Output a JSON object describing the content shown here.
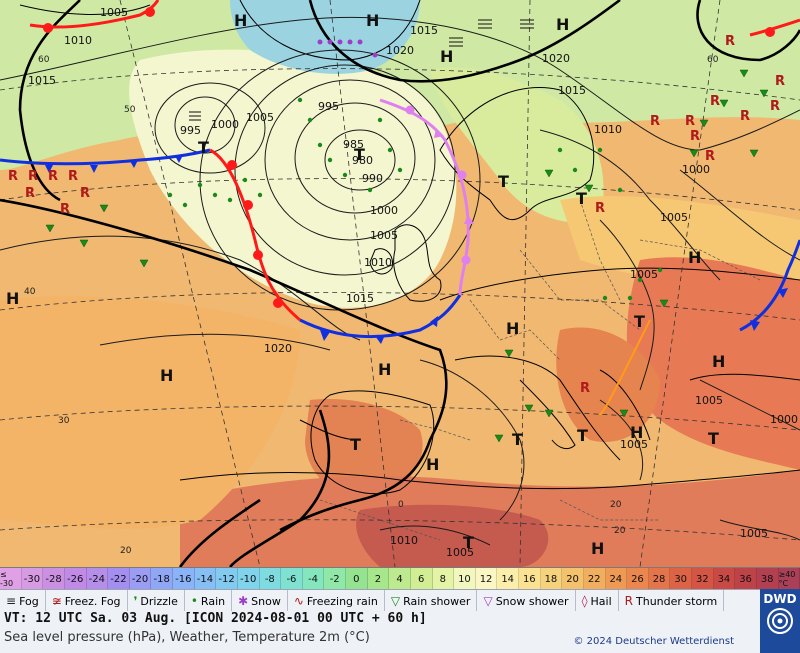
{
  "map": {
    "pressure_labels": [
      {
        "text": "1005"
      },
      {
        "text": "1010"
      },
      {
        "text": "1015"
      },
      {
        "text": "1020"
      },
      {
        "text": "995"
      },
      {
        "text": "1000"
      },
      {
        "text": "1005"
      },
      {
        "text": "995"
      },
      {
        "text": "985"
      },
      {
        "text": "980"
      },
      {
        "text": "990"
      },
      {
        "text": "1000"
      },
      {
        "text": "1005"
      },
      {
        "text": "1010"
      },
      {
        "text": "1015"
      },
      {
        "text": "1020"
      },
      {
        "text": "1015"
      },
      {
        "text": "1020"
      },
      {
        "text": "1015"
      },
      {
        "text": "1010"
      },
      {
        "text": "1005"
      },
      {
        "text": "1000"
      },
      {
        "text": "1005"
      },
      {
        "text": "1005"
      },
      {
        "text": "1005"
      },
      {
        "text": "1000"
      },
      {
        "text": "1010"
      },
      {
        "text": "1005"
      },
      {
        "text": "1005"
      }
    ],
    "high_low": [
      "H",
      "H",
      "H",
      "H",
      "H",
      "H",
      "H",
      "H",
      "H",
      "H",
      "H",
      "H",
      "H",
      "T",
      "T",
      "T",
      "T",
      "T",
      "T",
      "T",
      "T",
      "T",
      "T"
    ],
    "lat_labels": [
      "60",
      "50",
      "40",
      "30",
      "20",
      "60",
      "20",
      "0",
      "20"
    ]
  },
  "temperature_scale": {
    "labels": [
      "≤ -30",
      "-30",
      "-28",
      "-26",
      "-24",
      "-22",
      "-20",
      "-18",
      "-16",
      "-14",
      "-12",
      "-10",
      "-8",
      "-6",
      "-4",
      "-2",
      "0",
      "2",
      "4",
      "6",
      "8",
      "10",
      "12",
      "14",
      "16",
      "18",
      "20",
      "22",
      "24",
      "26",
      "28",
      "30",
      "32",
      "34",
      "36",
      "38",
      "≥40 °C"
    ],
    "colors": [
      "#e0a0e6",
      "#d79be4",
      "#cb90e2",
      "#c08ae6",
      "#b48ee8",
      "#a48ff0",
      "#9b9cf4",
      "#90a7f6",
      "#8ab3f8",
      "#86bff4",
      "#82caf0",
      "#7fd3ea",
      "#7edbe0",
      "#7fe2d0",
      "#84e6bd",
      "#8fe8a8",
      "#95e290",
      "#a6e78c",
      "#bdea8e",
      "#d2ee95",
      "#e4f3a5",
      "#f2f7bf",
      "#fbf7c4",
      "#fbeeaa",
      "#fae292",
      "#f7d27d",
      "#f4c16c",
      "#f1ae5e",
      "#ee9a55",
      "#ea864e",
      "#e4744a",
      "#dd6346",
      "#d45544",
      "#c94a45",
      "#be4348",
      "#b34051",
      "#a94058"
    ]
  },
  "weather_legend": [
    {
      "icon": "fog-icon",
      "label": "Fog"
    },
    {
      "icon": "freezing-fog-icon",
      "label": "Freez. Fog"
    },
    {
      "icon": "drizzle-icon",
      "label": "Drizzle"
    },
    {
      "icon": "rain-icon",
      "label": "Rain"
    },
    {
      "icon": "snow-icon",
      "label": "Snow"
    },
    {
      "icon": "freezing-rain-icon",
      "label": "Freezing rain"
    },
    {
      "icon": "rain-shower-icon",
      "label": "Rain shower"
    },
    {
      "icon": "snow-shower-icon",
      "label": "Snow shower"
    },
    {
      "icon": "hail-icon",
      "label": "Hail"
    },
    {
      "icon": "thunderstorm-icon",
      "label": "Thunder storm"
    }
  ],
  "info": {
    "valid_time": "VT: 12 UTC Sa.  03 Aug. [ICON 2024-08-01  00 UTC + 60 h]",
    "subtitle": "Sea level pressure (hPa), Weather, Temperature 2m (°C)",
    "copyright": "© 2024 Deutscher Wetterdienst",
    "logo_text": "DWD"
  },
  "colors": {
    "warm_front": "#ff1a1a",
    "cold_front": "#1030e0",
    "occluded_front": "#e080f0",
    "isobar": "#1a1a1a",
    "land_coast": "#000000"
  }
}
